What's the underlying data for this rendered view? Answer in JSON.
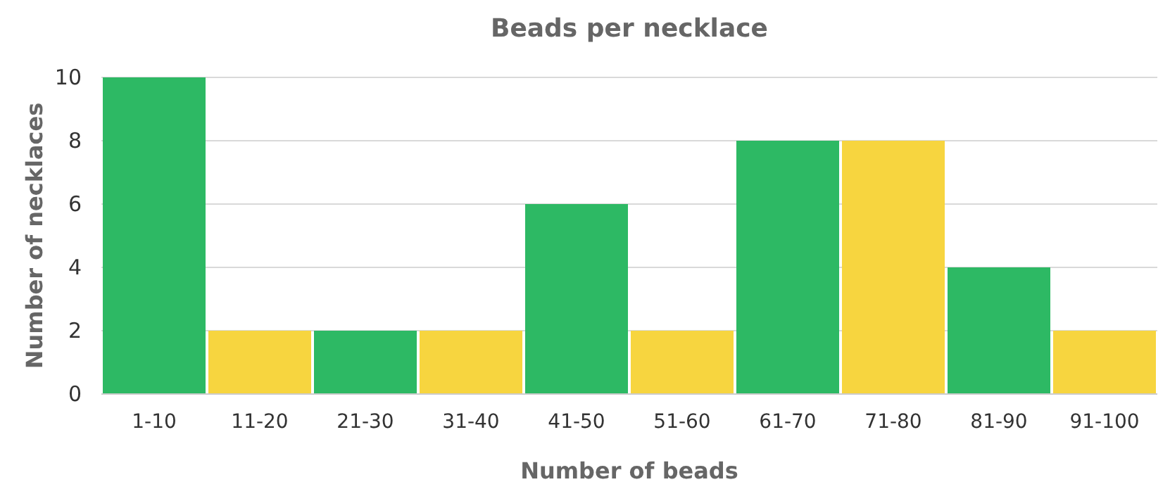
{
  "chart_data": {
    "type": "bar",
    "title": "Beads per necklace",
    "xlabel": "Number of beads",
    "ylabel": "Number of necklaces",
    "categories": [
      "1-10",
      "11-20",
      "21-30",
      "31-40",
      "41-50",
      "51-60",
      "61-70",
      "71-80",
      "81-90",
      "91-100"
    ],
    "values": [
      10,
      2,
      2,
      2,
      6,
      2,
      8,
      8,
      4,
      2
    ],
    "colors": [
      "#2db964",
      "#f7d53f",
      "#2db964",
      "#f7d53f",
      "#2db964",
      "#f7d53f",
      "#2db964",
      "#f7d53f",
      "#2db964",
      "#f7d53f"
    ],
    "ylim": [
      0,
      10
    ],
    "yticks": [
      0,
      2,
      4,
      6,
      8,
      10
    ],
    "grid": "y"
  }
}
